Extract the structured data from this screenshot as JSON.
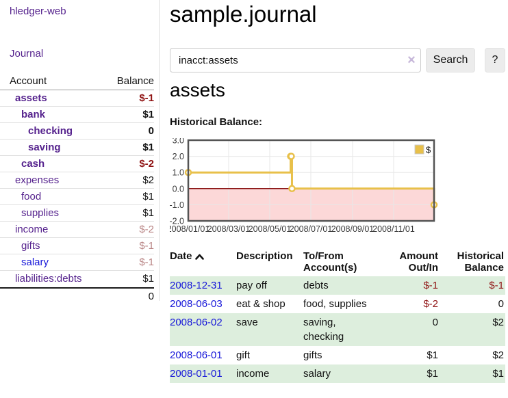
{
  "sidebar": {
    "app_title": "hledger-web",
    "journal_link": "Journal",
    "table": {
      "account_header": "Account",
      "balance_header": "Balance",
      "rows": [
        {
          "name": "assets",
          "balance": "$-1"
        },
        {
          "name": "bank",
          "balance": "$1"
        },
        {
          "name": "checking",
          "balance": "0"
        },
        {
          "name": "saving",
          "balance": "$1"
        },
        {
          "name": "cash",
          "balance": "$-2"
        },
        {
          "name": "expenses",
          "balance": "$2"
        },
        {
          "name": "food",
          "balance": "$1"
        },
        {
          "name": "supplies",
          "balance": "$1"
        },
        {
          "name": "income",
          "balance": "$-2"
        },
        {
          "name": "gifts",
          "balance": "$-1"
        },
        {
          "name": "salary",
          "balance": "$-1"
        },
        {
          "name": "liabilities:debts",
          "balance": "$1"
        }
      ],
      "total": "0"
    }
  },
  "main": {
    "title": "sample.journal",
    "search": {
      "value": "inacct:assets",
      "clear_icon": "×",
      "button_label": "Search",
      "help_label": "?"
    },
    "section_title": "assets",
    "chart_label": "Historical Balance:"
  },
  "chart_data": {
    "type": "line",
    "step": true,
    "title": "Historical Balance",
    "series": [
      {
        "name": "$",
        "color": "#e8c04a",
        "points": [
          [
            "2008-01-01",
            1
          ],
          [
            "2008-06-01",
            2
          ],
          [
            "2008-06-02",
            2
          ],
          [
            "2008-06-03",
            0
          ],
          [
            "2008-12-31",
            -1
          ]
        ]
      }
    ],
    "xlim": [
      "2008-01-01",
      "2008-12-31"
    ],
    "ylim": [
      -2,
      3
    ],
    "x_ticks": [
      {
        "date": "2008-01-01",
        "label": "2008/01/01"
      },
      {
        "date": "2008-03-01",
        "label": "2008/03/01"
      },
      {
        "date": "2008-05-01",
        "label": "2008/05/01"
      },
      {
        "date": "2008-07-01",
        "label": "2008/07/01"
      },
      {
        "date": "2008-09-01",
        "label": "2008/09/01"
      },
      {
        "date": "2008-11-01",
        "label": "2008/11/01"
      }
    ],
    "y_ticks": [
      {
        "v": 3,
        "label": "3.0"
      },
      {
        "v": 2,
        "label": "2.0"
      },
      {
        "v": 1,
        "label": "1.0"
      },
      {
        "v": 0,
        "label": "0.0"
      },
      {
        "v": -1,
        "label": "-1.0"
      },
      {
        "v": -2,
        "label": "-2.0"
      }
    ],
    "grid": true,
    "legend_position": "top-right",
    "legend_label": "$",
    "colors": {
      "negative_region": "#fcd8d8",
      "zero_line": "#871111",
      "gridline": "#e7e7e7",
      "border": "#545454",
      "marker_fill": "#ffffff"
    }
  },
  "register": {
    "headers": {
      "date": "Date",
      "description": "Description",
      "account": "To/From Account(s)",
      "amount": "Amount Out/In",
      "balance": "Historical Balance"
    },
    "sort_icon": "chevron-up",
    "rows": [
      {
        "date": "2008-12-31",
        "description": "pay off",
        "account": "debts",
        "amount": "$-1",
        "balance": "$-1"
      },
      {
        "date": "2008-06-03",
        "description": "eat & shop",
        "account": "food, supplies",
        "amount": "$-2",
        "balance": "0"
      },
      {
        "date": "2008-06-02",
        "description": "save",
        "account": "saving, checking",
        "amount": "0",
        "balance": "$2"
      },
      {
        "date": "2008-06-01",
        "description": "gift",
        "account": "gifts",
        "amount": "$1",
        "balance": "$2"
      },
      {
        "date": "2008-01-01",
        "description": "income",
        "account": "salary",
        "amount": "$1",
        "balance": "$1"
      }
    ]
  },
  "colors": {
    "link_purple": "#55228d",
    "link_blue": "#1616d9",
    "negative_strong": "#8f1212",
    "negative_pale": "#b98585",
    "row_stripe_green": "#ddeedd",
    "chart_line_gold": "#e8c04a"
  }
}
